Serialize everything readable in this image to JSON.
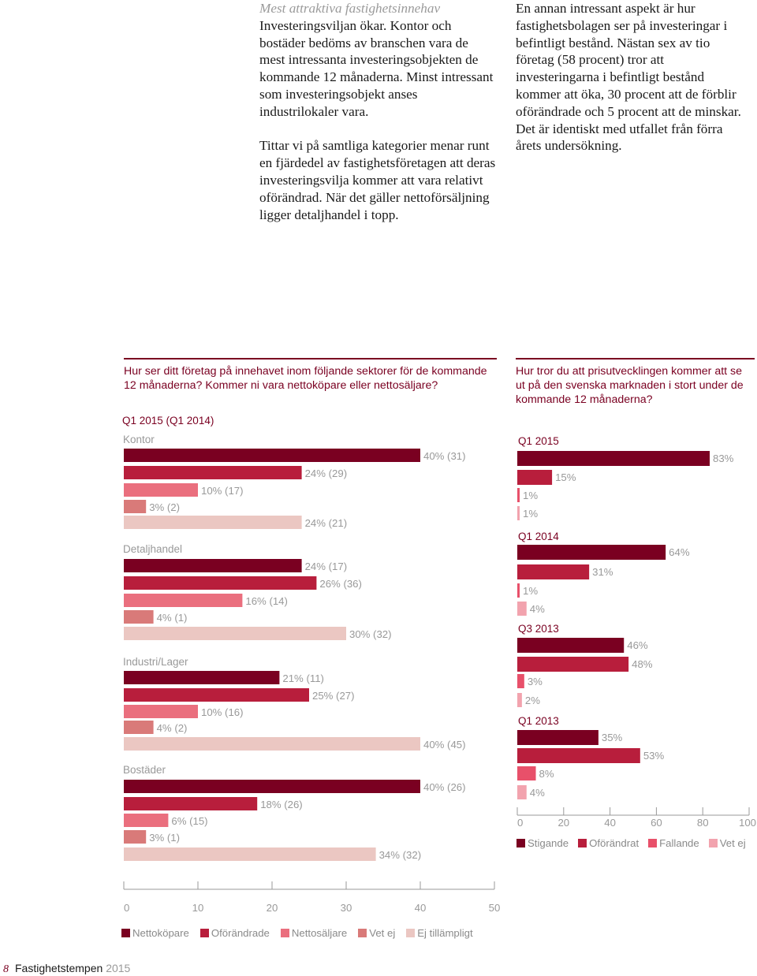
{
  "text": {
    "left_heading": "Mest attraktiva fastighetsinnehav",
    "left_p1": "Investeringsviljan ökar. Kontor och bostäder bedöms av branschen vara de mest intressanta investeringsobjekten de kommande 12 månaderna. Minst intressant som investeringsobjekt anses industrilokaler vara.",
    "left_p2": "Tittar vi på samtliga kategorier menar runt en fjärdedel av fastighetsföretagen att deras investeringsvilja kommer att vara relativt oförändrad. När det gäller nettoförsäljning ligger detaljhandel i topp.",
    "right_p1": "En annan intressant aspekt är hur fastighetsbolagen ser på investeringar i befintligt bestånd. Nästan sex av tio företag (58 procent) tror att investeringarna i befintligt bestånd kommer att öka, 30 procent att de förblir oförändrade och 5 procent att de minskar. Det är identiskt med utfallet från förra årets undersökning."
  },
  "left_chart_question": "Hur ser ditt företag på innehavet inom följande sektorer för de kommande 12 månaderna? Kommer ni vara nettoköpare eller nettosäljare?",
  "right_chart_question": "Hur tror du att prisutvecklingen kommer att se ut på den svenska marknaden i stort under de kommande 12 månaderna?",
  "footer": {
    "page": "8",
    "title": "Fastighetstempen",
    "year": "2015"
  },
  "colors": {
    "c1": "#7a0021",
    "c2": "#b81e3c",
    "c3": "#ea6f7e",
    "c4": "#d97a79",
    "c5": "#ebc7c2",
    "r3": "#e8506a",
    "r4": "#f2a3ae"
  },
  "chart_data": [
    {
      "type": "bar",
      "orientation": "horizontal",
      "subtitle": "Q1 2015 (Q1 2014)",
      "xlim": [
        0,
        50
      ],
      "xticks": [
        "0",
        "10",
        "20",
        "30",
        "40",
        "50"
      ],
      "legend": [
        "Nettoköpare",
        "Oförändrade",
        "Nettosäljare",
        "Vet ej",
        "Ej tillämpligt"
      ],
      "groups": [
        {
          "name": "Kontor",
          "values": [
            40,
            24,
            10,
            3,
            24
          ],
          "labels": [
            "40% (31)",
            "24% (29)",
            "10% (17)",
            "3% (2)",
            "24% (21)"
          ]
        },
        {
          "name": "Detaljhandel",
          "values": [
            24,
            26,
            16,
            4,
            30
          ],
          "labels": [
            "24% (17)",
            "26% (36)",
            "16% (14)",
            "4% (1)",
            "30% (32)"
          ]
        },
        {
          "name": "Industri/Lager",
          "values": [
            21,
            25,
            10,
            4,
            40
          ],
          "labels": [
            "21% (11)",
            "25% (27)",
            "10% (16)",
            "4% (2)",
            "40% (45)"
          ]
        },
        {
          "name": "Bostäder",
          "values": [
            40,
            18,
            6,
            3,
            34
          ],
          "labels": [
            "40% (26)",
            "18% (26)",
            "6% (15)",
            "3% (1)",
            "34% (32)"
          ]
        }
      ]
    },
    {
      "type": "bar",
      "orientation": "horizontal",
      "xlim": [
        0,
        100
      ],
      "xticks": [
        "0",
        "20",
        "40",
        "60",
        "80",
        "100"
      ],
      "legend": [
        "Stigande",
        "Oförändrat",
        "Fallande",
        "Vet ej"
      ],
      "groups": [
        {
          "name": "Q1 2015",
          "values": [
            83,
            15,
            1,
            1
          ],
          "labels": [
            "83%",
            "15%",
            "1%",
            "1%"
          ]
        },
        {
          "name": "Q1 2014",
          "values": [
            64,
            31,
            1,
            4
          ],
          "labels": [
            "64%",
            "31%",
            "1%",
            "4%"
          ]
        },
        {
          "name": "Q3 2013",
          "values": [
            46,
            48,
            3,
            2
          ],
          "labels": [
            "46%",
            "48%",
            "3%",
            "2%"
          ]
        },
        {
          "name": "Q1 2013",
          "values": [
            35,
            53,
            8,
            4
          ],
          "labels": [
            "35%",
            "53%",
            "8%",
            "4%"
          ]
        }
      ]
    }
  ]
}
